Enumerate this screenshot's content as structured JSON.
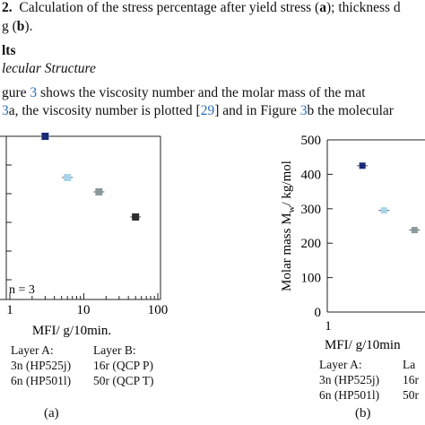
{
  "text": {
    "caption_line1_parts": [
      "2.",
      "Calculation of the stress percentage after yield stress (",
      "a",
      "); thickness d"
    ],
    "caption_line2_parts": [
      "g (",
      "b",
      ")."
    ],
    "section_heading": "lts",
    "subsection_heading": "lecular Structure",
    "body_line1_parts": [
      "gure ",
      "3",
      " shows the viscosity number and the molar mass of the mat"
    ],
    "body_line2_parts": [
      "3",
      "a, the viscosity number is plotted [",
      "29",
      "] and in Figure ",
      "3",
      "b the molecular"
    ]
  },
  "panel_a": {
    "annotation": "n = 3",
    "xlabel": "MFI/ g/10min.",
    "xtick_labels": [
      "1",
      "10",
      "100"
    ],
    "legend": {
      "layer_a_title": "Layer A:",
      "layer_a_items": [
        "3n (HP525j)",
        "6n (HP501l)"
      ],
      "layer_b_title": "Layer B:",
      "layer_b_items": [
        "16r (QCP P)",
        "50r (QCP T)"
      ]
    },
    "label": "(a)"
  },
  "panel_b": {
    "ylabel": "Molar mass M",
    "ylabel_sub": "w",
    "ylabel_unit": "/ kg/mol",
    "ytick_labels": [
      "0",
      "100",
      "200",
      "300",
      "400",
      "500"
    ],
    "xtick_labels": [
      "1"
    ],
    "xlabel": "MFI/ g/10min",
    "legend": {
      "layer_a_title": "Layer A:",
      "layer_a_items": [
        "3n (HP525j)",
        "6n (HP501l)"
      ],
      "layer_b_title": "La",
      "layer_b_items": [
        "16r",
        "50r"
      ]
    },
    "label": "(b)"
  },
  "chart_data": [
    {
      "type": "scatter",
      "xlabel": "MFI/ g/10min.",
      "ylabel": "",
      "xscale": "log",
      "xlim": [
        1,
        100
      ],
      "grid": false,
      "series": [
        {
          "name": "3n (HP525j)",
          "color": "#1a2a78",
          "x": [
            3
          ],
          "y": [
            null
          ]
        },
        {
          "name": "6n (HP501l)",
          "color": "#a9d3e8",
          "x": [
            6
          ],
          "y": [
            null
          ]
        },
        {
          "name": "16r (QCP P)",
          "color": "#8a9a9a",
          "x": [
            16
          ],
          "y": [
            null
          ]
        },
        {
          "name": "50r (QCP T)",
          "color": "#2e2e2e",
          "x": [
            50
          ],
          "y": [
            null
          ]
        }
      ]
    },
    {
      "type": "scatter",
      "xlabel": "MFI/ g/10min",
      "ylabel": "Molar mass Mw/ kg/mol",
      "xscale": "log",
      "ylim": [
        0,
        500
      ],
      "grid": false,
      "series": [
        {
          "name": "3n (HP525j)",
          "color": "#1a2a78",
          "x": [
            3
          ],
          "y": [
            425
          ]
        },
        {
          "name": "6n (HP501l)",
          "color": "#a9d3e8",
          "x": [
            6
          ],
          "y": [
            295
          ]
        },
        {
          "name": "16r",
          "color": "#8a9a9a",
          "x": [
            16
          ],
          "y": [
            238
          ]
        }
      ]
    }
  ]
}
